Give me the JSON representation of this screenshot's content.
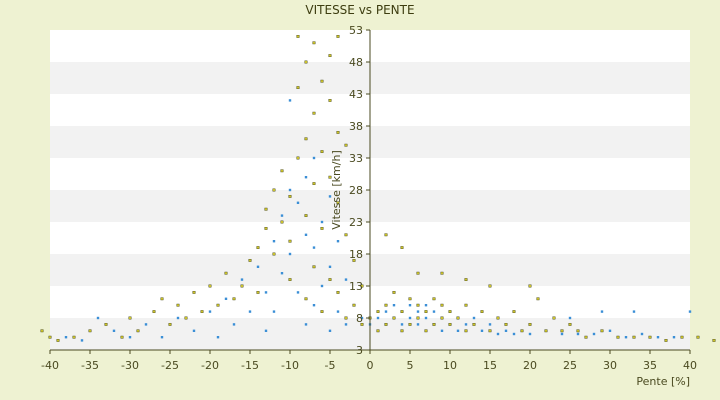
{
  "chart_data": {
    "type": "scatter",
    "title": "VITESSE vs PENTE",
    "xlabel": "Pente [%]",
    "ylabel": "Vitesse [km/h]",
    "xlim": [
      -40,
      40
    ],
    "ylim": [
      3,
      53
    ],
    "x_ticks": [
      -40,
      -35,
      -30,
      -25,
      -20,
      -15,
      -10,
      -5,
      0,
      5,
      10,
      15,
      20,
      25,
      30,
      35,
      40
    ],
    "y_ticks": [
      3,
      8,
      13,
      18,
      23,
      28,
      33,
      38,
      43,
      48,
      53
    ],
    "grid": "horizontal bands",
    "colors": {
      "background": "#eef2d2",
      "band_light": "#ffffff",
      "band_dark": "#f2f2f2",
      "axis": "#4a4a20",
      "series_a": "#c9c12a",
      "series_a_edge": "#3c3c0a",
      "series_b": "#3b8fd6"
    },
    "series": [
      {
        "marker_color": "#c9c12a",
        "points": [
          [
            -41,
            6
          ],
          [
            -40,
            5
          ],
          [
            -39,
            4.5
          ],
          [
            -37,
            5
          ],
          [
            -35,
            6
          ],
          [
            -33,
            7
          ],
          [
            -31,
            5
          ],
          [
            -30,
            8
          ],
          [
            -29,
            6
          ],
          [
            -27,
            9
          ],
          [
            -26,
            11
          ],
          [
            -25,
            7
          ],
          [
            -24,
            10
          ],
          [
            -23,
            8
          ],
          [
            -22,
            12
          ],
          [
            -21,
            9
          ],
          [
            -20,
            13
          ],
          [
            -19,
            10
          ],
          [
            -18,
            15
          ],
          [
            -17,
            11
          ],
          [
            -16,
            13
          ],
          [
            -15,
            17
          ],
          [
            -14,
            19
          ],
          [
            -14,
            12
          ],
          [
            -13,
            22
          ],
          [
            -13,
            25
          ],
          [
            -12,
            28
          ],
          [
            -12,
            18
          ],
          [
            -11,
            23
          ],
          [
            -11,
            31
          ],
          [
            -10,
            20
          ],
          [
            -10,
            27
          ],
          [
            -10,
            14
          ],
          [
            -9,
            33
          ],
          [
            -9,
            44
          ],
          [
            -9,
            52
          ],
          [
            -8,
            36
          ],
          [
            -8,
            48
          ],
          [
            -8,
            24
          ],
          [
            -8,
            11
          ],
          [
            -7,
            29
          ],
          [
            -7,
            40
          ],
          [
            -7,
            51
          ],
          [
            -7,
            16
          ],
          [
            -6,
            45
          ],
          [
            -6,
            34
          ],
          [
            -6,
            22
          ],
          [
            -6,
            9
          ],
          [
            -5,
            49
          ],
          [
            -5,
            42
          ],
          [
            -5,
            30
          ],
          [
            -5,
            14
          ],
          [
            -4,
            52
          ],
          [
            -4,
            37
          ],
          [
            -4,
            26
          ],
          [
            -4,
            12
          ],
          [
            -3,
            35
          ],
          [
            -3,
            21
          ],
          [
            -3,
            8
          ],
          [
            -2,
            17
          ],
          [
            -2,
            10
          ],
          [
            -1,
            13
          ],
          [
            -1,
            7
          ],
          [
            0,
            8
          ],
          [
            1,
            9
          ],
          [
            1,
            6
          ],
          [
            2,
            10
          ],
          [
            2,
            7
          ],
          [
            3,
            12
          ],
          [
            3,
            8
          ],
          [
            4,
            9
          ],
          [
            4,
            6
          ],
          [
            5,
            11
          ],
          [
            5,
            7
          ],
          [
            6,
            10
          ],
          [
            6,
            8
          ],
          [
            7,
            9
          ],
          [
            7,
            6
          ],
          [
            8,
            11
          ],
          [
            8,
            7
          ],
          [
            9,
            8
          ],
          [
            9,
            10
          ],
          [
            10,
            7
          ],
          [
            10,
            9
          ],
          [
            11,
            8
          ],
          [
            12,
            10
          ],
          [
            12,
            6
          ],
          [
            13,
            7
          ],
          [
            14,
            9
          ],
          [
            15,
            6
          ],
          [
            16,
            8
          ],
          [
            17,
            7
          ],
          [
            18,
            9
          ],
          [
            19,
            6
          ],
          [
            20,
            7
          ],
          [
            21,
            11
          ],
          [
            22,
            6
          ],
          [
            23,
            8
          ],
          [
            24,
            6
          ],
          [
            25,
            7
          ],
          [
            26,
            6
          ],
          [
            27,
            5
          ],
          [
            29,
            6
          ],
          [
            31,
            5
          ],
          [
            33,
            5
          ],
          [
            35,
            5
          ],
          [
            37,
            4.5
          ],
          [
            39,
            5
          ],
          [
            41,
            5
          ],
          [
            43,
            4.5
          ],
          [
            9,
            15
          ],
          [
            12,
            14
          ],
          [
            15,
            13
          ],
          [
            4,
            19
          ],
          [
            6,
            15
          ],
          [
            20,
            13
          ],
          [
            2,
            21
          ]
        ]
      },
      {
        "marker_color": "#3b8fd6",
        "points": [
          [
            -38,
            5
          ],
          [
            -36,
            4.5
          ],
          [
            -34,
            8
          ],
          [
            -32,
            6
          ],
          [
            -30,
            5
          ],
          [
            -28,
            7
          ],
          [
            -26,
            5
          ],
          [
            -24,
            8
          ],
          [
            -22,
            6
          ],
          [
            -20,
            9
          ],
          [
            -19,
            5
          ],
          [
            -18,
            11
          ],
          [
            -17,
            7
          ],
          [
            -16,
            14
          ],
          [
            -15,
            9
          ],
          [
            -14,
            16
          ],
          [
            -13,
            12
          ],
          [
            -13,
            6
          ],
          [
            -12,
            20
          ],
          [
            -12,
            9
          ],
          [
            -11,
            24
          ],
          [
            -11,
            15
          ],
          [
            -10,
            28
          ],
          [
            -10,
            18
          ],
          [
            -10,
            42
          ],
          [
            -9,
            26
          ],
          [
            -9,
            12
          ],
          [
            -8,
            30
          ],
          [
            -8,
            21
          ],
          [
            -8,
            7
          ],
          [
            -7,
            33
          ],
          [
            -7,
            19
          ],
          [
            -7,
            10
          ],
          [
            -6,
            23
          ],
          [
            -6,
            13
          ],
          [
            -5,
            27
          ],
          [
            -5,
            16
          ],
          [
            -5,
            6
          ],
          [
            -4,
            20
          ],
          [
            -4,
            9
          ],
          [
            -3,
            14
          ],
          [
            -3,
            7
          ],
          [
            -2,
            10
          ],
          [
            -1,
            8
          ],
          [
            0,
            7
          ],
          [
            1,
            8
          ],
          [
            2,
            9
          ],
          [
            2,
            7
          ],
          [
            3,
            10
          ],
          [
            3,
            8
          ],
          [
            4,
            9
          ],
          [
            4,
            7
          ],
          [
            5,
            10
          ],
          [
            5,
            8
          ],
          [
            6,
            9
          ],
          [
            6,
            7
          ],
          [
            7,
            8
          ],
          [
            7,
            10
          ],
          [
            8,
            7
          ],
          [
            8,
            9
          ],
          [
            9,
            8
          ],
          [
            9,
            6
          ],
          [
            10,
            7
          ],
          [
            10,
            9
          ],
          [
            11,
            8
          ],
          [
            11,
            6
          ],
          [
            12,
            7
          ],
          [
            13,
            8
          ],
          [
            14,
            6
          ],
          [
            15,
            7
          ],
          [
            16,
            5.5
          ],
          [
            17,
            6
          ],
          [
            18,
            5.5
          ],
          [
            19,
            6
          ],
          [
            20,
            5.5
          ],
          [
            22,
            6
          ],
          [
            24,
            5.5
          ],
          [
            26,
            5.5
          ],
          [
            28,
            5.5
          ],
          [
            30,
            6
          ],
          [
            32,
            5
          ],
          [
            34,
            5.5
          ],
          [
            36,
            5
          ],
          [
            38,
            5
          ],
          [
            40,
            9
          ],
          [
            25,
            8
          ],
          [
            29,
            9
          ],
          [
            33,
            9
          ]
        ]
      }
    ]
  }
}
